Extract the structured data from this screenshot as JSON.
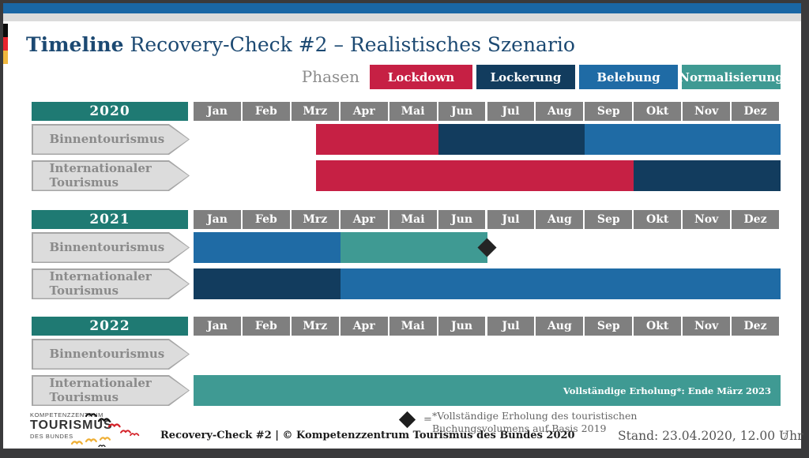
{
  "header": {
    "title_bold": "Timeline",
    "title_rest": " Recovery-Check #2 – Realistisches Szenario"
  },
  "window": {
    "topbar_color": "#1A67A5",
    "flag_colors": [
      "#0B0B0B",
      "#E8232D",
      "#EFB73E"
    ]
  },
  "legend": {
    "label": "Phasen",
    "phases": [
      {
        "name": "Lockdown",
        "color": "#C62044"
      },
      {
        "name": "Lockerung",
        "color": "#123C5E"
      },
      {
        "name": "Belebung",
        "color": "#1F6BA5"
      },
      {
        "name": "Normalisierung",
        "color": "#3F9A93"
      }
    ]
  },
  "chart_data": {
    "type": "gantt-timeline",
    "title": "Timeline Recovery-Check #2 – Realistisches Szenario",
    "unit": "months (0 = start of Jan, 12 = end of Dez)",
    "months": [
      "Jan",
      "Feb",
      "Mrz",
      "Apr",
      "Mai",
      "Jun",
      "Jul",
      "Aug",
      "Sep",
      "Okt",
      "Nov",
      "Dez"
    ],
    "year_header_color": "#1F7A73",
    "month_header_color": "#7F7F7F",
    "years": [
      {
        "year": "2020",
        "rows": [
          {
            "label": [
              "Binnentourismus"
            ],
            "segments": [
              {
                "phase": "Lockdown",
                "start": 2.5,
                "end": 5
              },
              {
                "phase": "Lockerung",
                "start": 5,
                "end": 8
              },
              {
                "phase": "Belebung",
                "start": 8,
                "end": 12
              }
            ]
          },
          {
            "label": [
              "Internationaler",
              "Tourismus"
            ],
            "segments": [
              {
                "phase": "Lockdown",
                "start": 2.5,
                "end": 9
              },
              {
                "phase": "Lockerung",
                "start": 9,
                "end": 12
              }
            ]
          }
        ]
      },
      {
        "year": "2021",
        "rows": [
          {
            "label": [
              "Binnentourismus"
            ],
            "segments": [
              {
                "phase": "Belebung",
                "start": 0,
                "end": 3
              },
              {
                "phase": "Normalisierung",
                "start": 3,
                "end": 6
              }
            ],
            "marker": {
              "symbol": "diamond",
              "at": 6
            }
          },
          {
            "label": [
              "Internationaler",
              "Tourismus"
            ],
            "segments": [
              {
                "phase": "Lockerung",
                "start": 0,
                "end": 3
              },
              {
                "phase": "Belebung",
                "start": 3,
                "end": 12
              }
            ]
          }
        ]
      },
      {
        "year": "2022",
        "rows": [
          {
            "label": [
              "Binnentourismus"
            ],
            "segments": []
          },
          {
            "label": [
              "Internationaler",
              "Tourismus"
            ],
            "segments": [
              {
                "phase": "Normalisierung",
                "start": 0,
                "end": 12,
                "note": "Vollständige Erholung*: Ende März 2023"
              }
            ]
          }
        ]
      }
    ]
  },
  "footer": {
    "copyright": "Recovery-Check #2 | © Kompetenzzentrum Tourismus des Bundes 2020",
    "note_equals": "=",
    "note_line1": "*Vollständige Erholung des touristischen",
    "note_line2": "Buchungsvolumens auf Basis 2019",
    "stand": "Stand: 23.04.2020, 12.00 Uhr",
    "page": "7"
  },
  "logo": {
    "top": "KOMPETENZZENTRUM",
    "name": "TOURISMUS",
    "sub": "DES BUNDES"
  }
}
